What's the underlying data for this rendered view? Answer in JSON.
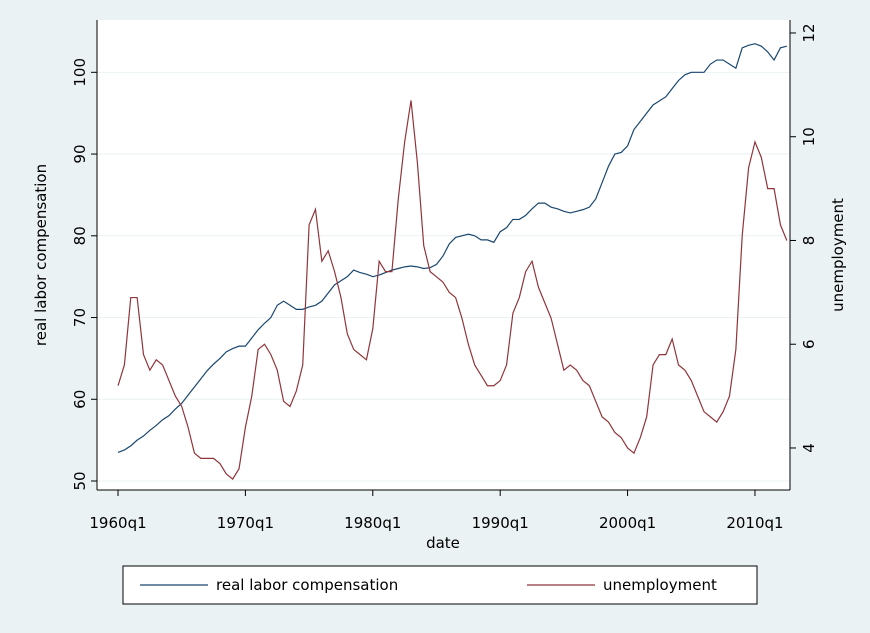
{
  "chart_data": {
    "type": "line",
    "x_label": "date",
    "y_label": "real labor compensation",
    "y2_label": "unemployment",
    "x": [
      1960,
      1960.5,
      1961,
      1961.5,
      1962,
      1962.5,
      1963,
      1963.5,
      1964,
      1964.5,
      1965,
      1965.5,
      1966,
      1966.5,
      1967,
      1967.5,
      1968,
      1968.5,
      1969,
      1969.5,
      1970,
      1970.5,
      1971,
      1971.5,
      1972,
      1972.5,
      1973,
      1973.5,
      1974,
      1974.5,
      1975,
      1975.5,
      1976,
      1976.5,
      1977,
      1977.5,
      1978,
      1978.5,
      1979,
      1979.5,
      1980,
      1980.5,
      1981,
      1981.5,
      1982,
      1982.5,
      1983,
      1983.5,
      1984,
      1984.5,
      1985,
      1985.5,
      1986,
      1986.5,
      1987,
      1987.5,
      1988,
      1988.5,
      1989,
      1989.5,
      1990,
      1990.5,
      1991,
      1991.5,
      1992,
      1992.5,
      1993,
      1993.5,
      1994,
      1994.5,
      1995,
      1995.5,
      1996,
      1996.5,
      1997,
      1997.5,
      1998,
      1998.5,
      1999,
      1999.5,
      2000,
      2000.5,
      2001,
      2001.5,
      2002,
      2002.5,
      2003,
      2003.5,
      2004,
      2004.5,
      2005,
      2005.5,
      2006,
      2006.5,
      2007,
      2007.5,
      2008,
      2008.5,
      2009,
      2009.5,
      2010,
      2010.5,
      2011,
      2011.5,
      2012,
      2012.5
    ],
    "series": [
      {
        "name": "real labor compensation",
        "color": "#1a476f",
        "values": [
          53.5,
          53.8,
          54.3,
          55,
          55.5,
          56.2,
          56.8,
          57.5,
          58,
          58.8,
          59.5,
          60.5,
          61.5,
          62.5,
          63.5,
          64.3,
          65,
          65.8,
          66.2,
          66.5,
          66.5,
          67.5,
          68.5,
          69.3,
          70,
          71.5,
          72,
          71.5,
          71,
          71,
          71.3,
          71.5,
          72,
          73,
          74,
          74.5,
          75,
          75.8,
          75.5,
          75.3,
          75,
          75.2,
          75.5,
          75.8,
          76,
          76.2,
          76.3,
          76.2,
          76,
          76.1,
          76.5,
          77.5,
          79,
          79.8,
          80,
          80.2,
          80,
          79.5,
          79.5,
          79.2,
          80.5,
          81,
          82,
          82,
          82.5,
          83.3,
          84,
          84,
          83.5,
          83.3,
          83,
          82.8,
          83,
          83.2,
          83.5,
          84.5,
          86.5,
          88.5,
          90,
          90.2,
          91,
          93,
          94,
          95,
          96,
          96.5,
          97,
          98,
          99,
          99.7,
          100,
          100,
          100,
          101,
          101.5,
          101.5,
          101,
          100.5,
          103,
          103.3,
          103.5,
          103.2,
          102.5,
          101.5,
          103,
          103.2
        ]
      },
      {
        "name": "unemployment",
        "color": "#90353b",
        "axis": "y2",
        "values": [
          5.2,
          5.6,
          6.9,
          6.9,
          5.8,
          5.5,
          5.7,
          5.6,
          5.3,
          5.0,
          4.8,
          4.4,
          3.9,
          3.8,
          3.8,
          3.8,
          3.7,
          3.5,
          3.4,
          3.6,
          4.4,
          5.0,
          5.9,
          6.0,
          5.8,
          5.5,
          4.9,
          4.8,
          5.1,
          5.6,
          8.3,
          8.6,
          7.6,
          7.8,
          7.4,
          6.9,
          6.2,
          5.9,
          5.8,
          5.7,
          6.3,
          7.6,
          7.4,
          7.4,
          8.8,
          9.9,
          10.7,
          9.5,
          7.9,
          7.4,
          7.3,
          7.2,
          7.0,
          6.9,
          6.5,
          6.0,
          5.6,
          5.4,
          5.2,
          5.2,
          5.3,
          5.6,
          6.6,
          6.9,
          7.4,
          7.6,
          7.1,
          6.8,
          6.5,
          6.0,
          5.5,
          5.6,
          5.5,
          5.3,
          5.2,
          4.9,
          4.6,
          4.5,
          4.3,
          4.2,
          4.0,
          3.9,
          4.2,
          4.6,
          5.6,
          5.8,
          5.8,
          6.1,
          5.6,
          5.5,
          5.3,
          5.0,
          4.7,
          4.6,
          4.5,
          4.7,
          5.0,
          5.9,
          8.1,
          9.4,
          9.9,
          9.6,
          9.0,
          9.0,
          8.3,
          8.0
        ]
      }
    ],
    "xlim": [
      1958.35,
      2012.75
    ],
    "xticks": [
      {
        "value": 1960,
        "label": "1960q1"
      },
      {
        "value": 1970,
        "label": "1970q1"
      },
      {
        "value": 1980,
        "label": "1980q1"
      },
      {
        "value": 1990,
        "label": "1990q1"
      },
      {
        "value": 2000,
        "label": "2000q1"
      },
      {
        "value": 2010,
        "label": "2010q1"
      }
    ],
    "ylim": [
      48.9,
      106.4
    ],
    "yticks": [
      50,
      60,
      70,
      80,
      90,
      100
    ],
    "y2lim": [
      3.19,
      12.25
    ],
    "y2ticks": [
      4,
      6,
      8,
      10,
      12
    ],
    "grid": true,
    "legend": "bottom"
  }
}
